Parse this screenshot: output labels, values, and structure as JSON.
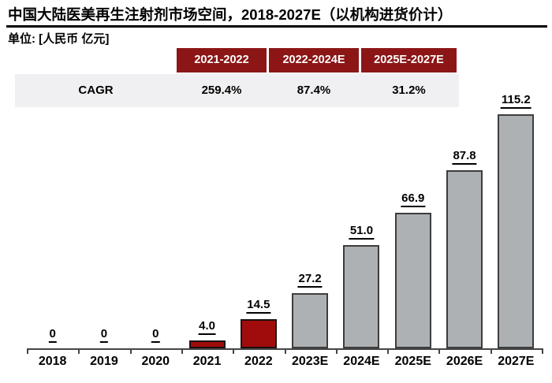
{
  "header": {
    "title": "中国大陆医美再生注射剂市场空间，2018-2027E（以机构进货价计）",
    "unit_label": "单位: [人民币 亿元]"
  },
  "cagr_table": {
    "row_label": "CAGR",
    "columns": [
      {
        "period": "2021-2022",
        "value": "259.4%"
      },
      {
        "period": "2022-2024E",
        "value": "87.4%"
      },
      {
        "period": "2025E-2027E",
        "value": "31.2%"
      }
    ]
  },
  "chart_data": {
    "type": "bar",
    "title": "中国大陆医美再生注射剂市场空间，2018-2027E（以机构进货价计）",
    "ylabel": "人民币 亿元",
    "xlabel": "",
    "categories": [
      "2018",
      "2019",
      "2020",
      "2021",
      "2022",
      "2023E",
      "2024E",
      "2025E",
      "2026E",
      "2027E"
    ],
    "values": [
      0,
      0,
      0,
      4.0,
      14.5,
      27.2,
      51.0,
      66.9,
      87.8,
      115.2
    ],
    "labels": [
      "0",
      "0",
      "0",
      "4.0",
      "14.5",
      "27.2",
      "51.0",
      "66.9",
      "87.8",
      "115.2"
    ],
    "highlighted": [
      "2021",
      "2022"
    ],
    "ylim": [
      0,
      120
    ],
    "grid": false,
    "legend": null,
    "cagr_annotations": [
      {
        "period": "2021-2022",
        "cagr": "259.4%"
      },
      {
        "period": "2022-2024E",
        "cagr": "87.4%"
      },
      {
        "period": "2025E-2027E",
        "cagr": "31.2%"
      }
    ]
  },
  "colors": {
    "table_header_red": "#8C1616",
    "table_header_text": "#FFFFFF",
    "table_row_bg": "#F0F0F2",
    "highlight_red": "#A00C0C",
    "highlight_bar_border": "#1C1010",
    "bar_gray": "#ADB1B4",
    "bar_border": "#3D3D3D",
    "axis_color": "#454545",
    "label_underline": "#000000"
  }
}
